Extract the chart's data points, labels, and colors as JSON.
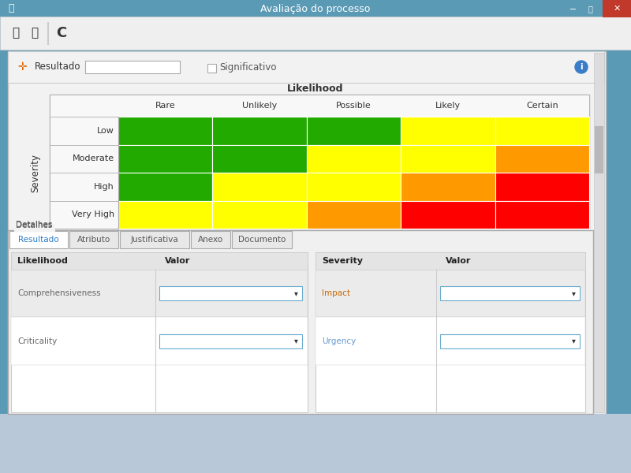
{
  "title": "Avaliação do processo",
  "titlebar_bg": "#5a9ab5",
  "titlebar_text": "Avaliação do processo",
  "toolbar_bg": "#efefef",
  "content_bg": "#f0f0f0",
  "likelihood_label": "Likelihood",
  "severity_label": "Severity",
  "likelihood_cols": [
    "Rare",
    "Unlikely",
    "Possible",
    "Likely",
    "Certain"
  ],
  "severity_rows": [
    "Low",
    "Moderate",
    "High",
    "Very High"
  ],
  "matrix_colors": [
    [
      "#22aa00",
      "#22aa00",
      "#22aa00",
      "#ffff00",
      "#ffff00"
    ],
    [
      "#22aa00",
      "#22aa00",
      "#ffff00",
      "#ffff00",
      "#ff9900"
    ],
    [
      "#22aa00",
      "#ffff00",
      "#ffff00",
      "#ff9900",
      "#ff0000"
    ],
    [
      "#ffff00",
      "#ffff00",
      "#ff9900",
      "#ff0000",
      "#ff0000"
    ]
  ],
  "resultado_label": "Resultado",
  "significativo_label": "Significativo",
  "detalhes_label": "Detalhes",
  "tabs": [
    "Resultado",
    "Atributo",
    "Justificativa",
    "Anexo",
    "Documento"
  ],
  "left_table_header": [
    "Likelihood",
    "Valor"
  ],
  "left_table_rows": [
    "Comprehensiveness",
    "Criticality"
  ],
  "right_table_header": [
    "Severity",
    "Valor"
  ],
  "right_table_rows": [
    "Impact",
    "Urgency"
  ],
  "row_label_colors": [
    "#555555",
    "#555555",
    "#555555",
    "#555555"
  ],
  "dropdown_border": "#6aadcf",
  "tab_active_color": "#2a7cc7",
  "tab_label_colors": [
    "#cc6600",
    "#888877",
    "#888877",
    "#888877",
    "#888877"
  ]
}
